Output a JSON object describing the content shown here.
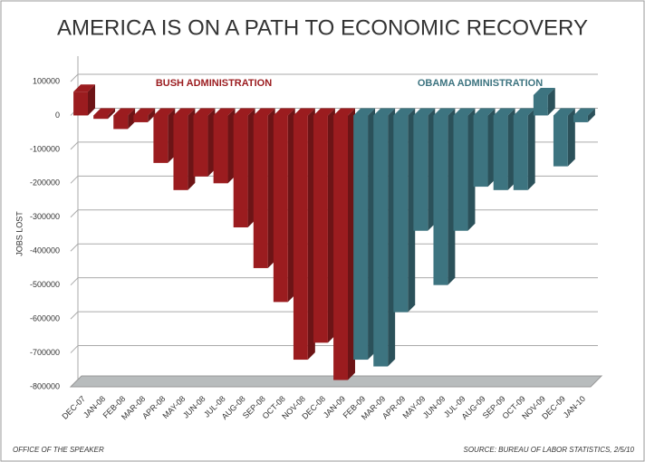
{
  "chart_data": {
    "type": "bar3d",
    "title": "AMERICA IS ON A PATH TO ECONOMIC RECOVERY",
    "y_label": "JOBS LOST",
    "categories": [
      "DEC-07",
      "JAN-08",
      "FEB-08",
      "MAR-08",
      "APR-08",
      "MAY-08",
      "JUN-08",
      "JUL-08",
      "AUG-08",
      "SEP-08",
      "OCT-08",
      "NOV-08",
      "DEC-08",
      "JAN-09",
      "FEB-09",
      "MAR-09",
      "APR-09",
      "MAY-09",
      "JUN-09",
      "JUL-09",
      "AUG-09",
      "SEP-09",
      "OCT-09",
      "NOV-09",
      "DEC-09",
      "JAN-10"
    ],
    "series": [
      {
        "name": "BUSH ADMINISTRATION",
        "color": "#9b1c1f",
        "values": [
          70000,
          -10000,
          -40000,
          -20000,
          -140000,
          -220000,
          -180000,
          -200000,
          -330000,
          -450000,
          -550000,
          -720000,
          -670000,
          -780000,
          null,
          null,
          null,
          null,
          null,
          null,
          null,
          null,
          null,
          null,
          null,
          null
        ]
      },
      {
        "name": "OBAMA ADMINISTRATION",
        "color": "#3d7480",
        "values": [
          null,
          null,
          null,
          null,
          null,
          null,
          null,
          null,
          null,
          null,
          null,
          null,
          null,
          null,
          -720000,
          -740000,
          -580000,
          -340000,
          -500000,
          -340000,
          -210000,
          -220000,
          -220000,
          60000,
          -150000,
          -20000
        ]
      }
    ],
    "ylim": [
      -800000,
      100000
    ],
    "yticks": [
      100000,
      0,
      -100000,
      -200000,
      -300000,
      -400000,
      -500000,
      -600000,
      -700000,
      -800000
    ],
    "grid": true,
    "footer_left": "OFFICE OF THE SPEAKER",
    "footer_right": "SOURCE: BUREAU OF LABOR STATISTICS, 2/5/10"
  }
}
